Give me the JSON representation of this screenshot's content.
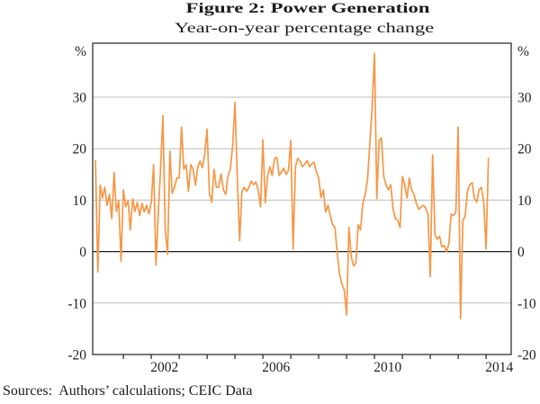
{
  "header": {
    "title": "Figure 2: Power Generation",
    "subtitle": "Year-on-year percentage change"
  },
  "footer": {
    "source_note": "Sources:  Authors’ calculations; CEIC Data"
  },
  "chart_data": {
    "type": "line",
    "title": "Figure 2: Power Generation",
    "subtitle": "Year-on-year percentage change",
    "unit_label": "%",
    "frequency": "monthly",
    "x_start_year": 2000,
    "xlim": [
      1999.9,
      2014.9
    ],
    "ylim": [
      -20,
      40.5
    ],
    "yticks": [
      30,
      20,
      10,
      0,
      -10,
      -20
    ],
    "gridlines": [
      30,
      20,
      10,
      -10
    ],
    "zero_line": 0,
    "xticks": [
      2001,
      2002,
      2003,
      2004,
      2005,
      2006,
      2007,
      2008,
      2009,
      2010,
      2011,
      2012,
      2013,
      2014
    ],
    "xtick_labels": [
      2002,
      2006,
      2010,
      2014
    ],
    "legend_position": "none",
    "grid": "horizontal",
    "line_color": "#f79646",
    "axis_color": "#1f1f1f",
    "grid_color": "#bcbcbc",
    "series": [
      {
        "name": "Power generation, year-on-year percentage change",
        "values": [
          17.7,
          -4.0,
          12.9,
          10.4,
          12.5,
          9.0,
          11.1,
          6.4,
          15.4,
          7.8,
          9.9,
          -1.9,
          12.0,
          8.7,
          9.9,
          4.2,
          10.3,
          7.8,
          9.6,
          7.0,
          9.4,
          7.7,
          9.0,
          7.3,
          9.6,
          16.9,
          -2.6,
          7.3,
          16.0,
          26.4,
          4.3,
          -0.5,
          19.5,
          11.3,
          12.5,
          14.3,
          14.3,
          24.2,
          16.0,
          16.9,
          11.7,
          16.9,
          16.0,
          12.9,
          16.5,
          17.6,
          16.3,
          19.0,
          23.8,
          11.3,
          9.6,
          16.0,
          12.5,
          12.5,
          15.1,
          12.0,
          11.1,
          14.8,
          16.0,
          20.5,
          29.0,
          14.3,
          2.1,
          11.7,
          12.5,
          11.7,
          12.5,
          13.7,
          13.0,
          13.5,
          12.0,
          8.7,
          21.7,
          9.5,
          14.6,
          16.5,
          14.8,
          18.1,
          18.3,
          14.8,
          15.5,
          16.2,
          15.0,
          15.8,
          21.6,
          0.5,
          16.5,
          18.1,
          17.5,
          16.5,
          17.0,
          17.7,
          16.5,
          17.0,
          17.4,
          15.5,
          14.3,
          10.5,
          12.0,
          7.7,
          9.0,
          7.0,
          5.2,
          4.7,
          -0.5,
          -4.3,
          -6.3,
          -7.5,
          -12.3,
          4.7,
          -1.0,
          -2.8,
          -2.3,
          5.2,
          4.2,
          9.4,
          11.1,
          13.9,
          20.9,
          28.0,
          38.5,
          10.3,
          21.6,
          22.1,
          14.6,
          12.9,
          12.0,
          13.0,
          8.2,
          6.4,
          6.1,
          4.7,
          14.6,
          13.0,
          10.4,
          14.3,
          12.0,
          11.1,
          9.4,
          8.2,
          8.7,
          9.0,
          8.5,
          7.3,
          -4.9,
          18.8,
          3.3,
          2.4,
          3.0,
          0.9,
          1.2,
          0.0,
          1.6,
          7.3,
          7.0,
          7.7,
          24.2,
          -13.0,
          6.1,
          6.8,
          11.7,
          13.0,
          13.4,
          10.3,
          9.6,
          12.0,
          12.5,
          9.6,
          0.5,
          18.1
        ]
      }
    ]
  }
}
